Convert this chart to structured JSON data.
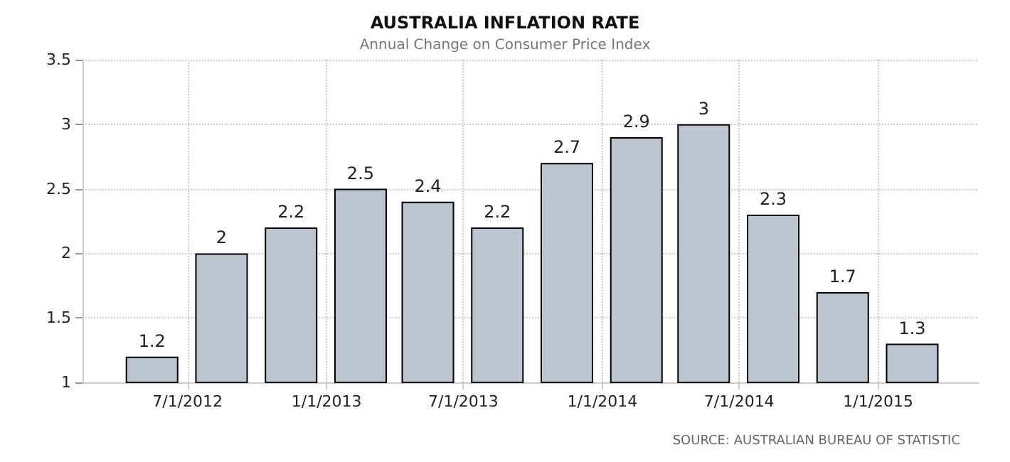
{
  "chart_data": {
    "type": "bar",
    "title": "AUSTRALIA INFLATION RATE",
    "subtitle": "Annual Change on Consumer Price Index",
    "x": [
      "2012-05-15",
      "2012-08-15",
      "2012-11-15",
      "2013-02-15",
      "2013-05-15",
      "2013-08-15",
      "2013-11-15",
      "2014-02-15",
      "2014-05-15",
      "2014-08-15",
      "2014-11-15",
      "2015-02-15"
    ],
    "values": [
      1.2,
      2,
      2.2,
      2.5,
      2.4,
      2.2,
      2.7,
      2.9,
      3,
      2.3,
      1.7,
      1.3
    ],
    "color": "#bcc6d1",
    "xlim": [
      "2012-02-13",
      "2015-05-14"
    ],
    "xticks": [
      {
        "value": "2012-07-01",
        "label": "7/1/2012"
      },
      {
        "value": "2013-01-01",
        "label": "1/1/2013"
      },
      {
        "value": "2013-07-01",
        "label": "7/1/2013"
      },
      {
        "value": "2014-01-01",
        "label": "1/1/2014"
      },
      {
        "value": "2014-07-01",
        "label": "7/1/2014"
      },
      {
        "value": "2015-01-01",
        "label": "1/1/2015"
      }
    ],
    "ylim": [
      1,
      3.5
    ],
    "yticks": [
      1,
      1.5,
      2,
      2.5,
      3,
      3.5
    ],
    "grid": true,
    "data_labels": true,
    "annotations": [
      "SOURCE: AUSTRALIAN BUREAU OF STATISTIC"
    ]
  }
}
